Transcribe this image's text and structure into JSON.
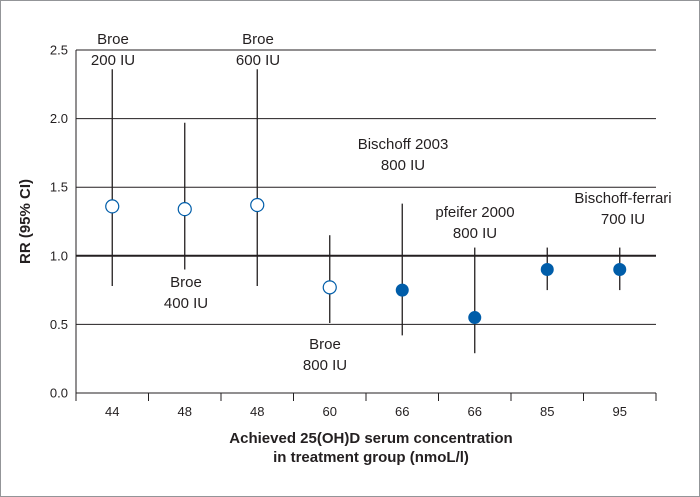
{
  "chart_data": {
    "type": "scatter",
    "title": "",
    "xlabel_lines": [
      "Achieved 25(OH)D serum concentration",
      "in treatment group (nmoL/l)"
    ],
    "ylabel": "RR (95% CI)",
    "ylim": [
      0.0,
      2.5
    ],
    "yticks": [
      "0.0",
      "0.5",
      "1.0",
      "1.5",
      "2.0",
      "2.5"
    ],
    "categories": [
      "44",
      "48",
      "48",
      "60",
      "66",
      "66",
      "85",
      "95"
    ],
    "points": [
      {
        "x": "44",
        "rr": 1.36,
        "ci_low": 0.78,
        "ci_high": 2.36,
        "filled": false
      },
      {
        "x": "48",
        "rr": 1.34,
        "ci_low": 0.9,
        "ci_high": 1.97,
        "filled": false
      },
      {
        "x": "48",
        "rr": 1.37,
        "ci_low": 0.78,
        "ci_high": 2.36,
        "filled": false
      },
      {
        "x": "60",
        "rr": 0.77,
        "ci_low": 0.51,
        "ci_high": 1.15,
        "filled": false
      },
      {
        "x": "66",
        "rr": 0.75,
        "ci_low": 0.42,
        "ci_high": 1.38,
        "filled": true
      },
      {
        "x": "66",
        "rr": 0.55,
        "ci_low": 0.29,
        "ci_high": 1.06,
        "filled": true
      },
      {
        "x": "85",
        "rr": 0.9,
        "ci_low": 0.75,
        "ci_high": 1.06,
        "filled": true
      },
      {
        "x": "95",
        "rr": 0.9,
        "ci_low": 0.75,
        "ci_high": 1.06,
        "filled": true
      }
    ],
    "annotations": [
      {
        "lines": [
          "Broe",
          "200 IU"
        ]
      },
      {
        "lines": [
          "Broe",
          "600 IU"
        ]
      },
      {
        "lines": [
          "Bischoff 2003",
          "800 IU"
        ]
      },
      {
        "lines": [
          "pfeifer 2000",
          "800 IU"
        ]
      },
      {
        "lines": [
          "Bischoff-ferrari",
          "700 IU"
        ]
      },
      {
        "lines": [
          "Broe",
          "400 IU"
        ]
      },
      {
        "lines": [
          "Broe",
          "800 IU"
        ]
      }
    ],
    "reference_line": 1.0,
    "grid": true,
    "colors": {
      "marker": "#005da9",
      "text": "#231f20",
      "grid": "#231f20",
      "border": "#939598"
    }
  }
}
